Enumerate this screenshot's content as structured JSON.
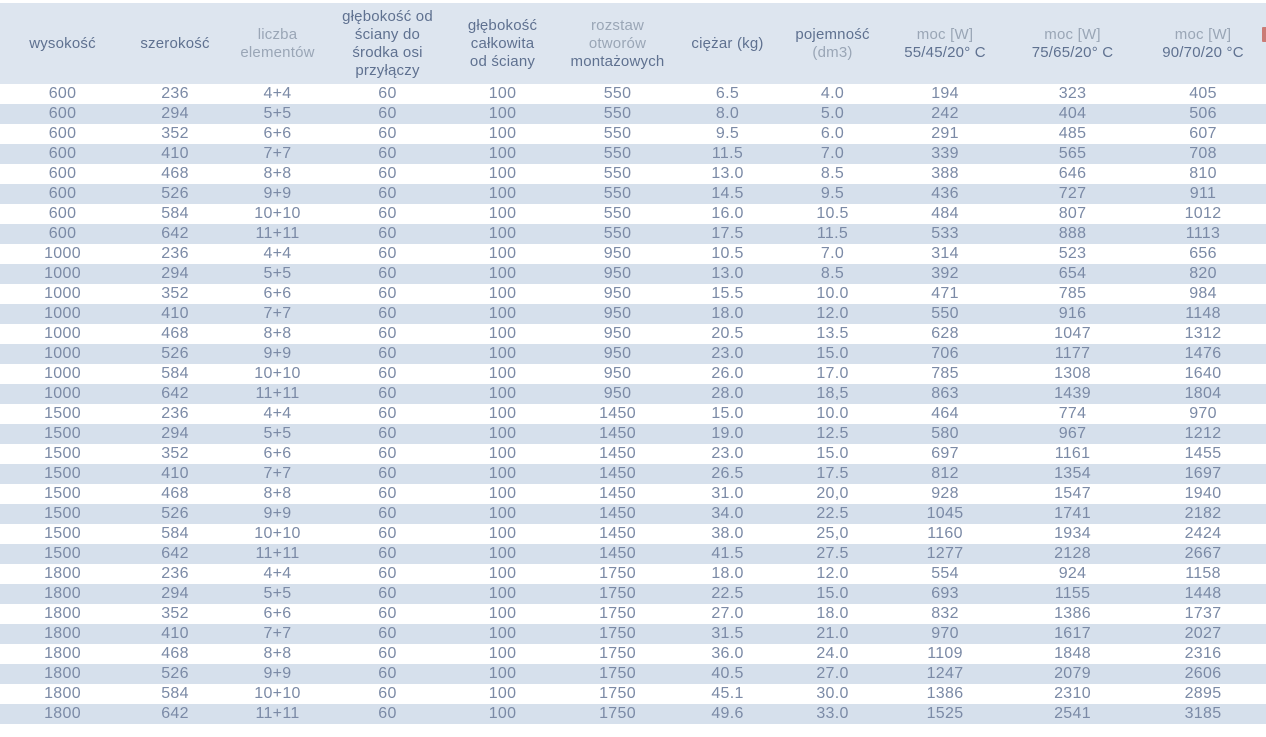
{
  "colors": {
    "header_bg": "#dde5ef",
    "row_stripe_bg": "#d6e0ec",
    "row_plain_bg": "#ffffff",
    "header_text_dark": "#5f7190",
    "header_text_light": "#9aa6b6",
    "data_text": "#7b8aa6",
    "clipped_fragment_red": "#c4574e"
  },
  "chart_data": {
    "type": "table",
    "title": "",
    "legend": null,
    "columns": [
      {
        "id": "wysokosc",
        "lines": [
          {
            "text": "wysokość",
            "tone": "dark"
          }
        ]
      },
      {
        "id": "szerokosc",
        "lines": [
          {
            "text": "szerokość",
            "tone": "dark"
          }
        ]
      },
      {
        "id": "liczba-elementow",
        "lines": [
          {
            "text": "liczba",
            "tone": "light"
          },
          {
            "text": "elementów",
            "tone": "light"
          }
        ]
      },
      {
        "id": "glebokosc-przylaczy",
        "lines": [
          {
            "text": "głębokość od",
            "tone": "dark"
          },
          {
            "text": "ściany do",
            "tone": "dark"
          },
          {
            "text": "środka osi",
            "tone": "dark"
          },
          {
            "text": "przyłączy",
            "tone": "dark"
          }
        ]
      },
      {
        "id": "glebokosc-calkowita",
        "lines": [
          {
            "text": "głębokość",
            "tone": "dark"
          },
          {
            "text": "całkowita",
            "tone": "dark"
          },
          {
            "text": "od ściany",
            "tone": "dark"
          }
        ]
      },
      {
        "id": "rozstaw-otworow",
        "lines": [
          {
            "text": "rozstaw",
            "tone": "light"
          },
          {
            "text": "otworów",
            "tone": "light"
          },
          {
            "text": "montażowych",
            "tone": "dark"
          }
        ]
      },
      {
        "id": "ciezar",
        "lines": [
          {
            "text": "ciężar (kg)",
            "tone": "dark"
          }
        ]
      },
      {
        "id": "pojemnosc",
        "lines": [
          {
            "text": "pojemność",
            "tone": "dark"
          },
          {
            "text": "(dm3)",
            "tone": "light"
          }
        ]
      },
      {
        "id": "moc-55-45-20",
        "lines": [
          {
            "text": "moc [W]",
            "tone": "light"
          },
          {
            "text": "55/45/20° C",
            "tone": "dark"
          }
        ]
      },
      {
        "id": "moc-75-65-20",
        "lines": [
          {
            "text": "moc [W]",
            "tone": "light"
          },
          {
            "text": "75/65/20° C",
            "tone": "dark"
          }
        ]
      },
      {
        "id": "moc-90-70-20",
        "lines": [
          {
            "text": "moc [W]",
            "tone": "light"
          },
          {
            "text": "90/70/20 °C",
            "tone": "dark"
          }
        ]
      }
    ],
    "rows": [
      [
        "600",
        "236",
        "4+4",
        "60",
        "100",
        "550",
        "6.5",
        "4.0",
        "194",
        "323",
        "405"
      ],
      [
        "600",
        "294",
        "5+5",
        "60",
        "100",
        "550",
        "8.0",
        "5.0",
        "242",
        "404",
        "506"
      ],
      [
        "600",
        "352",
        "6+6",
        "60",
        "100",
        "550",
        "9.5",
        "6.0",
        "291",
        "485",
        "607"
      ],
      [
        "600",
        "410",
        "7+7",
        "60",
        "100",
        "550",
        "11.5",
        "7.0",
        "339",
        "565",
        "708"
      ],
      [
        "600",
        "468",
        "8+8",
        "60",
        "100",
        "550",
        "13.0",
        "8.5",
        "388",
        "646",
        "810"
      ],
      [
        "600",
        "526",
        "9+9",
        "60",
        "100",
        "550",
        "14.5",
        "9.5",
        "436",
        "727",
        "911"
      ],
      [
        "600",
        "584",
        "10+10",
        "60",
        "100",
        "550",
        "16.0",
        "10.5",
        "484",
        "807",
        "1012"
      ],
      [
        "600",
        "642",
        "11+11",
        "60",
        "100",
        "550",
        "17.5",
        "11.5",
        "533",
        "888",
        "1113"
      ],
      [
        "1000",
        "236",
        "4+4",
        "60",
        "100",
        "950",
        "10.5",
        "7.0",
        "314",
        "523",
        "656"
      ],
      [
        "1000",
        "294",
        "5+5",
        "60",
        "100",
        "950",
        "13.0",
        "8.5",
        "392",
        "654",
        "820"
      ],
      [
        "1000",
        "352",
        "6+6",
        "60",
        "100",
        "950",
        "15.5",
        "10.0",
        "471",
        "785",
        "984"
      ],
      [
        "1000",
        "410",
        "7+7",
        "60",
        "100",
        "950",
        "18.0",
        "12.0",
        "550",
        "916",
        "1148"
      ],
      [
        "1000",
        "468",
        "8+8",
        "60",
        "100",
        "950",
        "20.5",
        "13.5",
        "628",
        "1047",
        "1312"
      ],
      [
        "1000",
        "526",
        "9+9",
        "60",
        "100",
        "950",
        "23.0",
        "15.0",
        "706",
        "1177",
        "1476"
      ],
      [
        "1000",
        "584",
        "10+10",
        "60",
        "100",
        "950",
        "26.0",
        "17.0",
        "785",
        "1308",
        "1640"
      ],
      [
        "1000",
        "642",
        "11+11",
        "60",
        "100",
        "950",
        "28.0",
        "18,5",
        "863",
        "1439",
        "1804"
      ],
      [
        "1500",
        "236",
        "4+4",
        "60",
        "100",
        "1450",
        "15.0",
        "10.0",
        "464",
        "774",
        "970"
      ],
      [
        "1500",
        "294",
        "5+5",
        "60",
        "100",
        "1450",
        "19.0",
        "12.5",
        "580",
        "967",
        "1212"
      ],
      [
        "1500",
        "352",
        "6+6",
        "60",
        "100",
        "1450",
        "23.0",
        "15.0",
        "697",
        "1161",
        "1455"
      ],
      [
        "1500",
        "410",
        "7+7",
        "60",
        "100",
        "1450",
        "26.5",
        "17.5",
        "812",
        "1354",
        "1697"
      ],
      [
        "1500",
        "468",
        "8+8",
        "60",
        "100",
        "1450",
        "31.0",
        "20,0",
        "928",
        "1547",
        "1940"
      ],
      [
        "1500",
        "526",
        "9+9",
        "60",
        "100",
        "1450",
        "34.0",
        "22.5",
        "1045",
        "1741",
        "2182"
      ],
      [
        "1500",
        "584",
        "10+10",
        "60",
        "100",
        "1450",
        "38.0",
        "25,0",
        "1160",
        "1934",
        "2424"
      ],
      [
        "1500",
        "642",
        "11+11",
        "60",
        "100",
        "1450",
        "41.5",
        "27.5",
        "1277",
        "2128",
        "2667"
      ],
      [
        "1800",
        "236",
        "4+4",
        "60",
        "100",
        "1750",
        "18.0",
        "12.0",
        "554",
        "924",
        "1158"
      ],
      [
        "1800",
        "294",
        "5+5",
        "60",
        "100",
        "1750",
        "22.5",
        "15.0",
        "693",
        "1155",
        "1448"
      ],
      [
        "1800",
        "352",
        "6+6",
        "60",
        "100",
        "1750",
        "27.0",
        "18.0",
        "832",
        "1386",
        "1737"
      ],
      [
        "1800",
        "410",
        "7+7",
        "60",
        "100",
        "1750",
        "31.5",
        "21.0",
        "970",
        "1617",
        "2027"
      ],
      [
        "1800",
        "468",
        "8+8",
        "60",
        "100",
        "1750",
        "36.0",
        "24.0",
        "1109",
        "1848",
        "2316"
      ],
      [
        "1800",
        "526",
        "9+9",
        "60",
        "100",
        "1750",
        "40.5",
        "27.0",
        "1247",
        "2079",
        "2606"
      ],
      [
        "1800",
        "584",
        "10+10",
        "60",
        "100",
        "1750",
        "45.1",
        "30.0",
        "1386",
        "2310",
        "2895"
      ],
      [
        "1800",
        "642",
        "11+11",
        "60",
        "100",
        "1750",
        "49.6",
        "33.0",
        "1525",
        "2541",
        "3185"
      ]
    ]
  }
}
